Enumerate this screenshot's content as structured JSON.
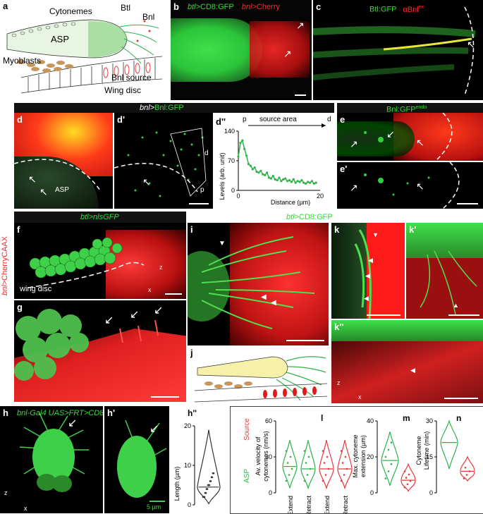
{
  "a": {
    "label": "a",
    "cytonemes": "Cytonemes",
    "btl": "Btl",
    "bnl": "Bnl",
    "asp": "ASP",
    "myoblasts": "Myoblasts",
    "bnl_source": "Bnl source",
    "wing_disc": "Wing disc"
  },
  "b": {
    "label": "b",
    "t1": "btl>",
    "t2": "CD8:GFP",
    "t3": "bnl>",
    "t4": "Cherry"
  },
  "c": {
    "label": "c",
    "t1": "Btl:GFP",
    "t2": "αBnl",
    "t3": "ex"
  },
  "d_header": {
    "t1": "bnl>",
    "t2": "Bnl:GFP"
  },
  "d": {
    "label": "d",
    "asp": "ASP"
  },
  "d1": {
    "label": "d'",
    "d": "d",
    "p": "p"
  },
  "d2": {
    "label": "d''",
    "p": "p",
    "source": "source area",
    "d": "d",
    "ylabel": "Levels (arb. unit)",
    "xlabel": "Distance (µm)"
  },
  "e_header": {
    "t1": "Bnl:GFP",
    "t2": "endo"
  },
  "e": {
    "label": "e"
  },
  "e1": {
    "label": "e'"
  },
  "side_label": {
    "t1": "bnl>",
    "t2": "CherryCAAX"
  },
  "f_header": {
    "t1": "btl>",
    "t2": "nlsGFP"
  },
  "f": {
    "label": "f",
    "wing_disc": "wing disc",
    "z": "z",
    "x": "x"
  },
  "g": {
    "label": "g"
  },
  "ijk_header": {
    "t1": "btl>",
    "t2": "CD8:GFP"
  },
  "i": {
    "label": "i"
  },
  "j": {
    "label": "j"
  },
  "k": {
    "label": "k"
  },
  "k1": {
    "label": "k'"
  },
  "k2": {
    "label": "k''",
    "z": "z",
    "x": "x"
  },
  "h": {
    "label": "h",
    "title": "bnl-Gal4 UAS>FRT>CD8:GFP",
    "z": "z",
    "x": "x"
  },
  "h1": {
    "label": "h'",
    "scale": "5 µm"
  },
  "h2": {
    "label": "h''",
    "ylabel": "Length (µm)"
  },
  "lmn": {
    "source": "Source",
    "asp": "ASP",
    "l_label": "l",
    "l_ylabel": "Av. velocity of cytonemes (nm/s)",
    "l_cats": [
      "Extend",
      "Retract",
      "Extend",
      "Retract"
    ],
    "m_label": "m",
    "m_ylabel": "Max. cytoneme extension (µm)",
    "n_label": "n",
    "n_ylabel": "Cytoneme Lifetime (min)"
  },
  "chart_data": [
    {
      "type": "line",
      "title": "",
      "xlabel": "Distance (µm)",
      "ylabel": "Levels (arb. unit)",
      "xlim": [
        0,
        20
      ],
      "ylim": [
        0,
        140
      ],
      "xticks": [
        0,
        20
      ],
      "yticks": [
        0,
        70,
        140
      ],
      "x": [
        0,
        0.5,
        1,
        1.5,
        2,
        2.5,
        3,
        3.5,
        4,
        4.5,
        5,
        5.5,
        6,
        6.5,
        7,
        7.5,
        8,
        8.5,
        9,
        9.5,
        10,
        10.5,
        11,
        11.5,
        12,
        12.5,
        13,
        13.5,
        14,
        14.5,
        15,
        15.5,
        16,
        16.5,
        17,
        17.5,
        18,
        18.5,
        19
      ],
      "y": [
        80,
        112,
        118,
        98,
        82,
        62,
        58,
        50,
        54,
        44,
        42,
        46,
        38,
        36,
        42,
        30,
        28,
        34,
        26,
        24,
        30,
        22,
        26,
        28,
        22,
        24,
        20,
        26,
        18,
        22,
        20,
        24,
        18,
        16,
        20,
        18,
        22,
        16,
        18
      ],
      "series_colors": [
        "#2fb24a"
      ]
    },
    {
      "type": "violin",
      "ylabel": "Length (µm)",
      "ylim": [
        0,
        20
      ],
      "yticks": [
        0,
        10,
        20
      ],
      "categories": [
        ""
      ],
      "values": [
        4.5
      ]
    },
    {
      "type": "violin",
      "ylabel": "Av. velocity of cytonemes (nm/s)",
      "ylim": [
        0,
        60
      ],
      "yticks": [
        0,
        30,
        60
      ],
      "categories": [
        "Extend",
        "Retract",
        "Extend",
        "Retract"
      ],
      "series": [
        {
          "name": "ASP",
          "values": [
            22,
            20
          ]
        },
        {
          "name": "Source",
          "values": [
            20,
            20
          ]
        }
      ],
      "colors": [
        "#2fb24a",
        "#e53a3a"
      ]
    },
    {
      "type": "violin",
      "ylabel": "Max. cytoneme extension (µm)",
      "ylim": [
        0,
        40
      ],
      "yticks": [
        0,
        20,
        40
      ],
      "series": [
        {
          "name": "ASP",
          "values": [
            18
          ]
        },
        {
          "name": "Source",
          "values": [
            7
          ]
        }
      ],
      "colors": [
        "#2fb24a",
        "#e53a3a"
      ]
    },
    {
      "type": "violin",
      "ylabel": "Cytoneme Lifetime (min)",
      "ylim": [
        0,
        30
      ],
      "yticks": [
        0,
        15,
        30
      ],
      "series": [
        {
          "name": "ASP",
          "values": [
            21
          ]
        },
        {
          "name": "Source",
          "values": [
            9
          ]
        }
      ],
      "colors": [
        "#2fb24a",
        "#e53a3a"
      ]
    }
  ]
}
